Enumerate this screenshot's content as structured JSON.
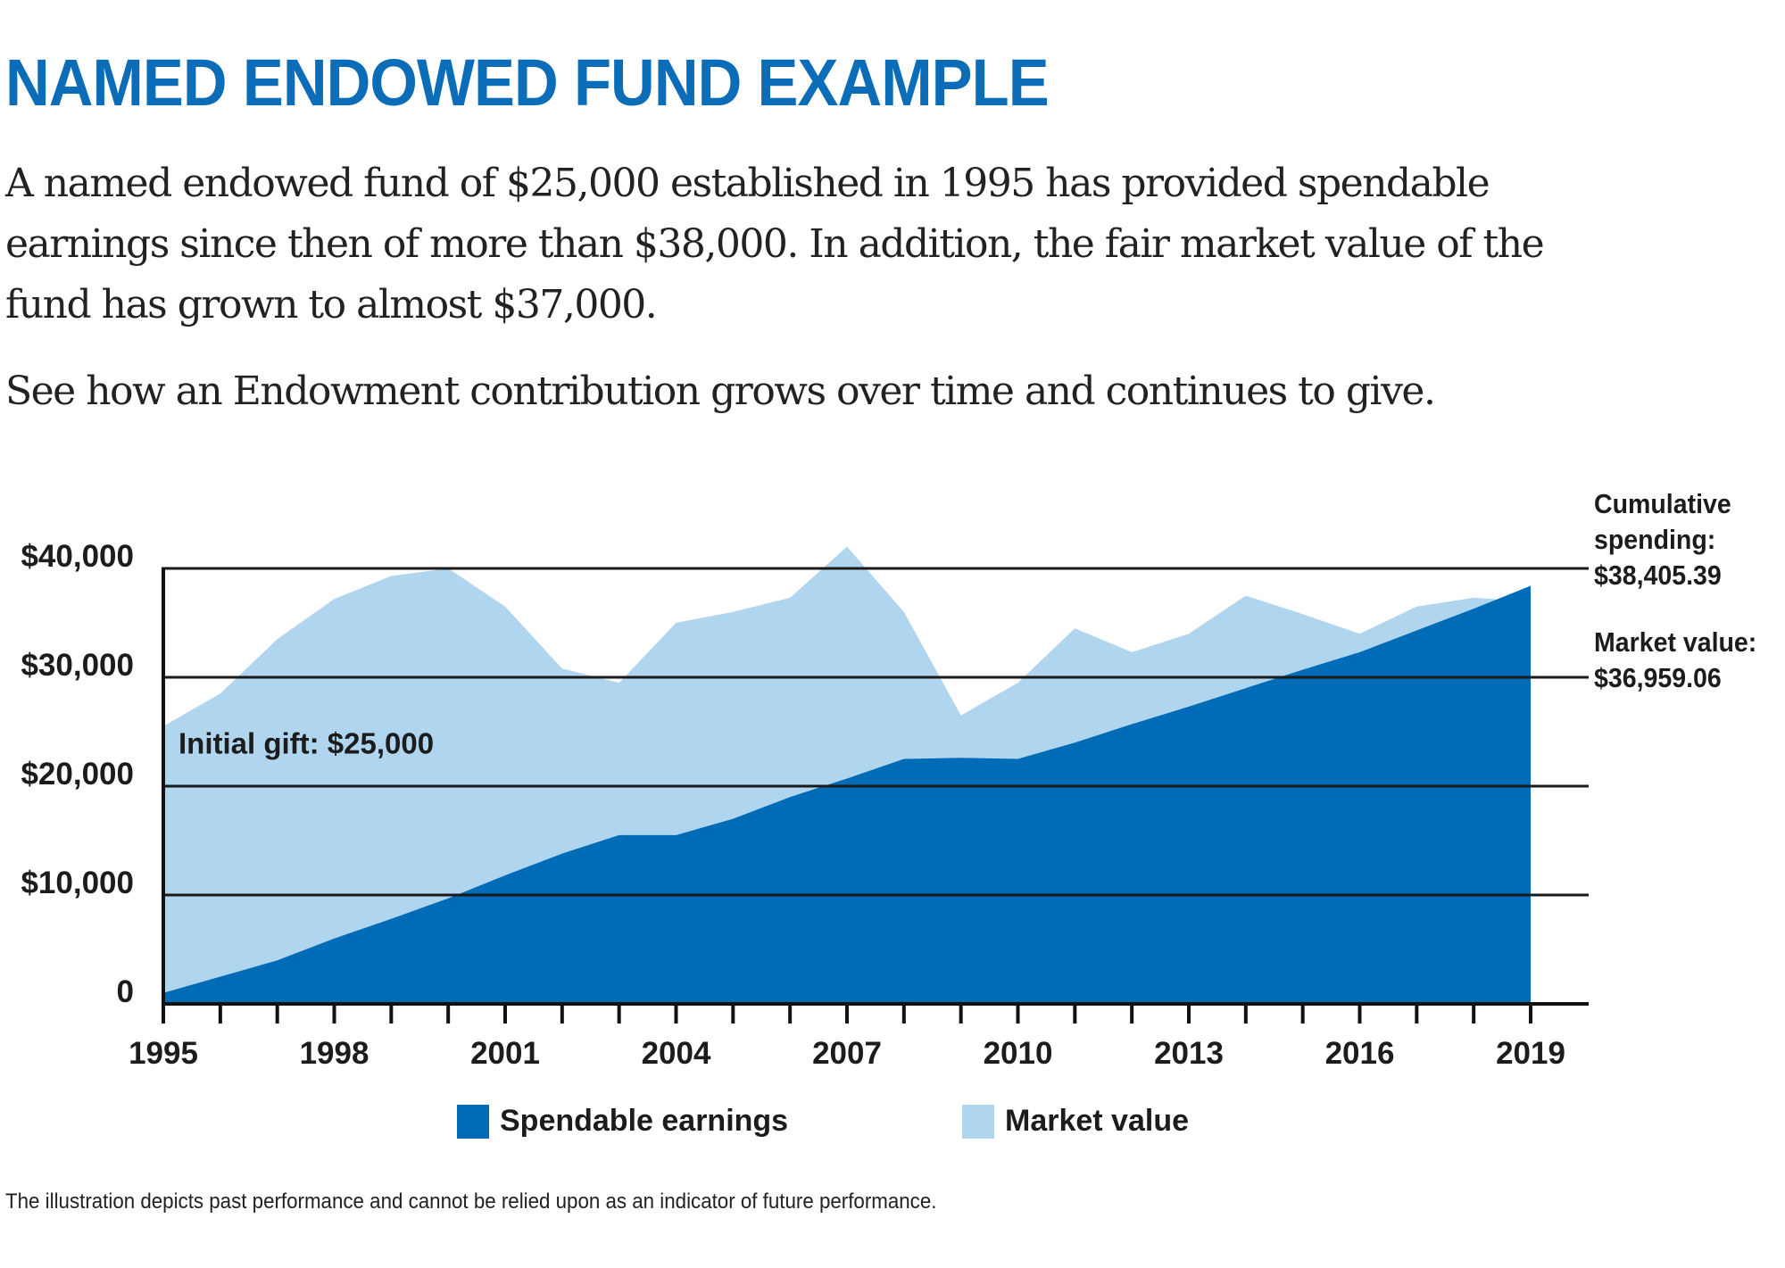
{
  "title": "NAMED ENDOWED FUND EXAMPLE",
  "intro_paragraph": "A named endowed fund of $25,000 established in 1995 has provided spendable earnings since then of more than $38,000. In addition, the fair market value of the fund has grown to almost $37,000.",
  "intro_line2": "See how an Endowment contribution grows over time and continues to give.",
  "footnote": "The illustration depicts past performance and cannot be relied upon as an indicator of future performance.",
  "colors": {
    "title": "#0b6cb8",
    "spendable_earnings": "#006bb6",
    "market_value": "#b0d5ef",
    "gridline": "#1a1a1a"
  },
  "annotations": {
    "initial_gift": "Initial gift: $25,000",
    "cumulative_label_1": "Cumulative",
    "cumulative_label_2": "spending:",
    "cumulative_value": "$38,405.39",
    "market_label": "Market value:",
    "market_value": "$36,959.06"
  },
  "chart_data": {
    "type": "area",
    "title": "",
    "xlabel": "",
    "ylabel": "",
    "x": [
      1995,
      1996,
      1997,
      1998,
      1999,
      2000,
      2001,
      2002,
      2003,
      2004,
      2005,
      2006,
      2007,
      2008,
      2009,
      2010,
      2011,
      2012,
      2013,
      2014,
      2015,
      2016,
      2017,
      2018,
      2019
    ],
    "x_tick_labels": [
      "1995",
      "1998",
      "2001",
      "2004",
      "2007",
      "2010",
      "2013",
      "2016",
      "2019"
    ],
    "x_tick_label_years": [
      1995,
      1998,
      2001,
      2004,
      2007,
      2010,
      2013,
      2016,
      2019
    ],
    "y_tick_values": [
      0,
      10000,
      20000,
      30000,
      40000
    ],
    "y_tick_labels": [
      "0",
      "$10,000",
      "$20,000",
      "$30,000",
      "$40,000"
    ],
    "ylim": [
      0,
      40000
    ],
    "xlim": [
      1995,
      2020
    ],
    "grid": true,
    "legend_position": "bottom",
    "series": [
      {
        "name": "Market value",
        "values": [
          25500,
          28500,
          33500,
          37200,
          39300,
          40000,
          36500,
          30800,
          29500,
          35000,
          36000,
          37300,
          42000,
          36000,
          26500,
          29500,
          34500,
          32300,
          34000,
          37500,
          35800,
          34000,
          36500,
          37300,
          36959.06
        ]
      },
      {
        "name": "Spendable earnings",
        "values": [
          1000,
          2500,
          4000,
          6000,
          7800,
          9700,
          11800,
          13800,
          15500,
          15500,
          17000,
          19000,
          20700,
          22500,
          22600,
          22500,
          24000,
          25700,
          27300,
          29000,
          30700,
          32300,
          34300,
          36300,
          38405.39
        ]
      }
    ]
  }
}
